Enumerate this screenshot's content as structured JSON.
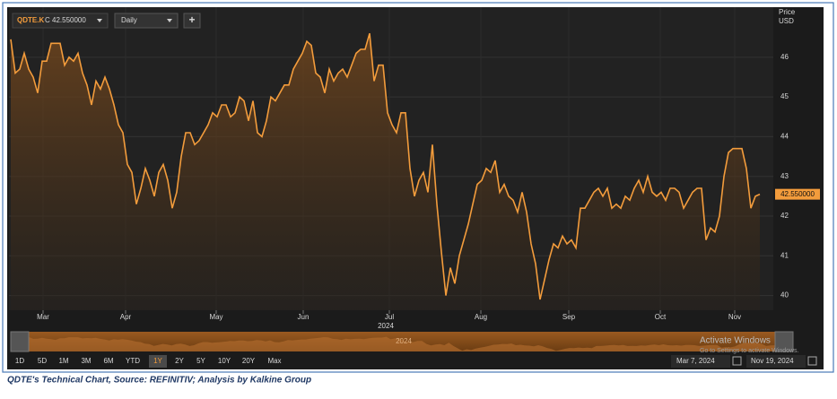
{
  "chart_data": {
    "type": "line",
    "title": "QDTE.K",
    "close_label": "C 42.550000",
    "interval": "Daily",
    "add_button": "+",
    "y_axis_label": "Price",
    "y_axis_unit": "USD",
    "color": "#f39c3c",
    "values": [
      46.45,
      45.6,
      45.7,
      46.1,
      45.7,
      45.5,
      45.1,
      45.9,
      45.9,
      46.35,
      46.35,
      46.35,
      45.8,
      46.0,
      45.9,
      46.1,
      45.6,
      45.3,
      44.8,
      45.4,
      45.2,
      45.5,
      45.2,
      44.8,
      44.3,
      44.1,
      43.3,
      43.1,
      42.3,
      42.7,
      43.2,
      42.9,
      42.5,
      43.1,
      43.3,
      42.9,
      42.2,
      42.6,
      43.5,
      44.1,
      44.1,
      43.8,
      43.9,
      44.1,
      44.3,
      44.6,
      44.5,
      44.8,
      44.8,
      44.5,
      44.6,
      45.0,
      44.9,
      44.4,
      44.9,
      44.1,
      44.0,
      44.4,
      45.0,
      44.9,
      45.1,
      45.3,
      45.3,
      45.7,
      45.9,
      46.1,
      46.4,
      46.3,
      45.6,
      45.5,
      45.1,
      45.7,
      45.4,
      45.6,
      45.7,
      45.5,
      45.8,
      46.1,
      46.2,
      46.2,
      46.6,
      45.4,
      45.8,
      45.8,
      44.6,
      44.3,
      44.1,
      44.6,
      44.6,
      43.2,
      42.5,
      42.9,
      43.1,
      42.6,
      43.8,
      42.3,
      41.1,
      40.0,
      40.7,
      40.3,
      41.0,
      41.4,
      41.8,
      42.3,
      42.8,
      42.9,
      43.2,
      43.1,
      43.4,
      42.6,
      42.8,
      42.5,
      42.4,
      42.1,
      42.6,
      42.1,
      41.3,
      40.8,
      39.9,
      40.4,
      40.9,
      41.3,
      41.2,
      41.5,
      41.3,
      41.4,
      41.2,
      42.2,
      42.2,
      42.4,
      42.6,
      42.7,
      42.5,
      42.7,
      42.2,
      42.3,
      42.2,
      42.5,
      42.4,
      42.7,
      42.9,
      42.6,
      43.0,
      42.6,
      42.5,
      42.6,
      42.4,
      42.7,
      42.7,
      42.6,
      42.2,
      42.4,
      42.6,
      42.7,
      42.7,
      41.4,
      41.7,
      41.6,
      42.0,
      43.0,
      43.6,
      43.7,
      43.7,
      43.7,
      43.2,
      42.2,
      42.5,
      42.55
    ],
    "last_value_label": "42.550000",
    "xlim": [
      -0.4,
      170
    ],
    "xticks": [
      {
        "value": 7.2,
        "label": "Mar"
      },
      {
        "value": 25.6,
        "label": "Apr"
      },
      {
        "value": 45.8,
        "label": "May"
      },
      {
        "value": 65.2,
        "label": "Jun"
      },
      {
        "value": 84.4,
        "label": "Jul"
      },
      {
        "value": 104.8,
        "label": "Aug"
      },
      {
        "value": 124.4,
        "label": "Sep"
      },
      {
        "value": 144.8,
        "label": "Oct"
      },
      {
        "value": 161.4,
        "label": "Nov"
      }
    ],
    "year_label": "2024",
    "ylim": [
      39.63,
      47.26
    ],
    "yticks": [
      40,
      41,
      42,
      43,
      44,
      45,
      46
    ],
    "navigator_label": "2024",
    "range_buttons": [
      "1D",
      "5D",
      "1M",
      "3M",
      "6M",
      "YTD",
      "1Y",
      "2Y",
      "5Y",
      "10Y",
      "20Y",
      "Max"
    ],
    "selected_range": 6,
    "start_date": "Mar 7, 2024",
    "end_date": "Nov 19, 2024",
    "watermark": [
      "Activate Windows",
      "Go to Settings to activate Windows."
    ]
  },
  "caption": "QDTE's Technical Chart, Source: REFINITIV; Analysis by Kalkine Group"
}
